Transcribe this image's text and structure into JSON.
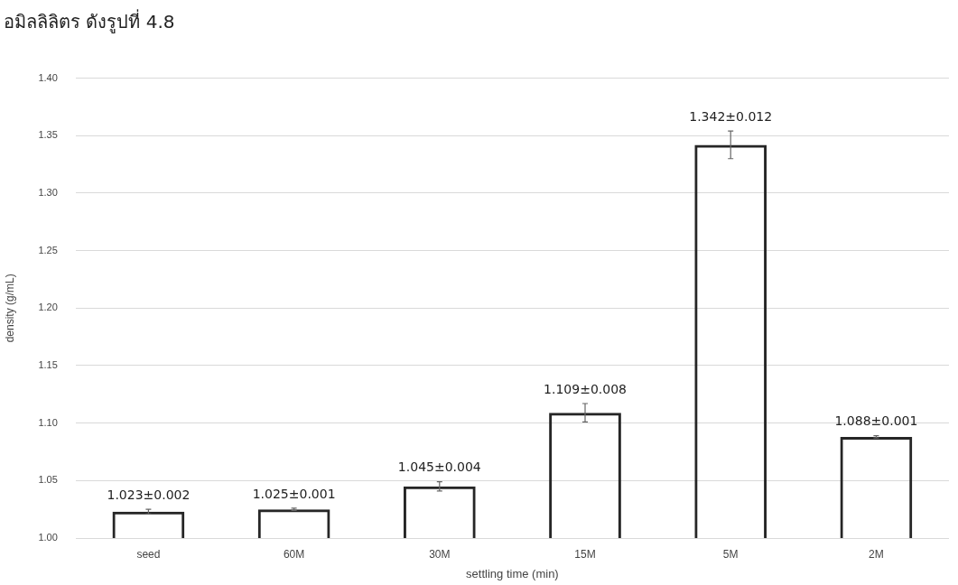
{
  "chart_data": {
    "type": "bar",
    "xlabel": "settling time (min)",
    "ylabel": "density (g/mL)",
    "annotations": [
      "อมิลลิลิตร ดังรูปที่ 4.8"
    ],
    "categories": [
      "seed",
      "60M",
      "30M",
      "15M",
      "5M",
      "2M"
    ],
    "values": [
      1.023,
      1.025,
      1.045,
      1.109,
      1.342,
      1.088
    ],
    "errors": [
      0.002,
      0.001,
      0.004,
      0.008,
      0.012,
      0.001
    ],
    "value_labels": [
      "1.023±0.002",
      "1.025±0.001",
      "1.045±0.004",
      "1.109±0.008",
      "1.342±0.012",
      "1.088±0.001"
    ],
    "color": "#262626",
    "ylim": [
      1.0,
      1.4
    ],
    "yticks": [
      {
        "value": 1.0,
        "label": "1.00"
      },
      {
        "value": 1.05,
        "label": "1.05"
      },
      {
        "value": 1.1,
        "label": "1.10"
      },
      {
        "value": 1.15,
        "label": "1.15"
      },
      {
        "value": 1.2,
        "label": "1.20"
      },
      {
        "value": 1.25,
        "label": "1.25"
      },
      {
        "value": 1.3,
        "label": "1.30"
      },
      {
        "value": 1.35,
        "label": "1.35"
      },
      {
        "value": 1.4,
        "label": "1.40"
      }
    ],
    "grid": "y",
    "legend": false
  }
}
